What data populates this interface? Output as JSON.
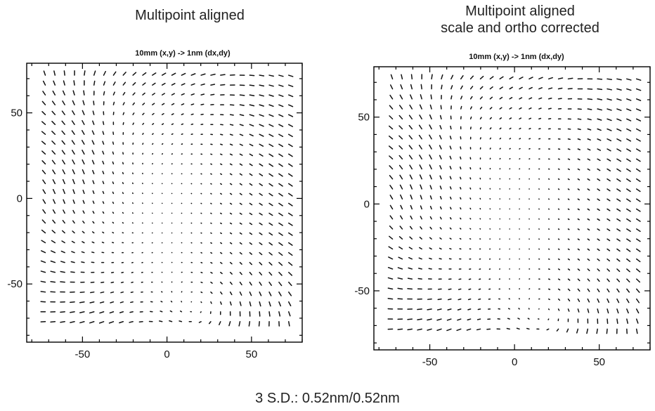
{
  "footer_text": "3 S.D.: 0.52nm/0.52nm",
  "chart_data": [
    {
      "type": "quiver",
      "heading": [
        "Multipoint aligned"
      ],
      "title": "10mm (x,y) -> 1nm (dx,dy)",
      "xlim": [
        -83,
        80
      ],
      "ylim": [
        -84,
        79
      ],
      "x_ticks": [
        -50,
        0,
        50
      ],
      "y_ticks": [
        -50,
        0,
        50
      ],
      "grid": false,
      "color": "#111111",
      "field": {
        "x_range": [
          -72,
          72
        ],
        "y_range": [
          -72,
          72
        ],
        "grid_count": 26,
        "pattern": "distortion field: near-zero vectors at center, swirling vortices at left edge near y=20 and bottom near x=25,y=-62"
      }
    },
    {
      "type": "quiver",
      "heading": [
        "Multipoint aligned",
        "scale and ortho corrected"
      ],
      "title": "10mm (x,y) -> 1nm (dx,dy)",
      "xlim": [
        -83,
        80
      ],
      "ylim": [
        -84,
        79
      ],
      "x_ticks": [
        -50,
        0,
        50
      ],
      "y_ticks": [
        -50,
        0,
        50
      ],
      "grid": false,
      "color": "#111111",
      "field": {
        "x_range": [
          -72,
          72
        ],
        "y_range": [
          -72,
          72
        ],
        "grid_count": 26,
        "pattern": "distortion field after scale/ortho correction: similar vortices at left edge and bottom"
      }
    }
  ]
}
